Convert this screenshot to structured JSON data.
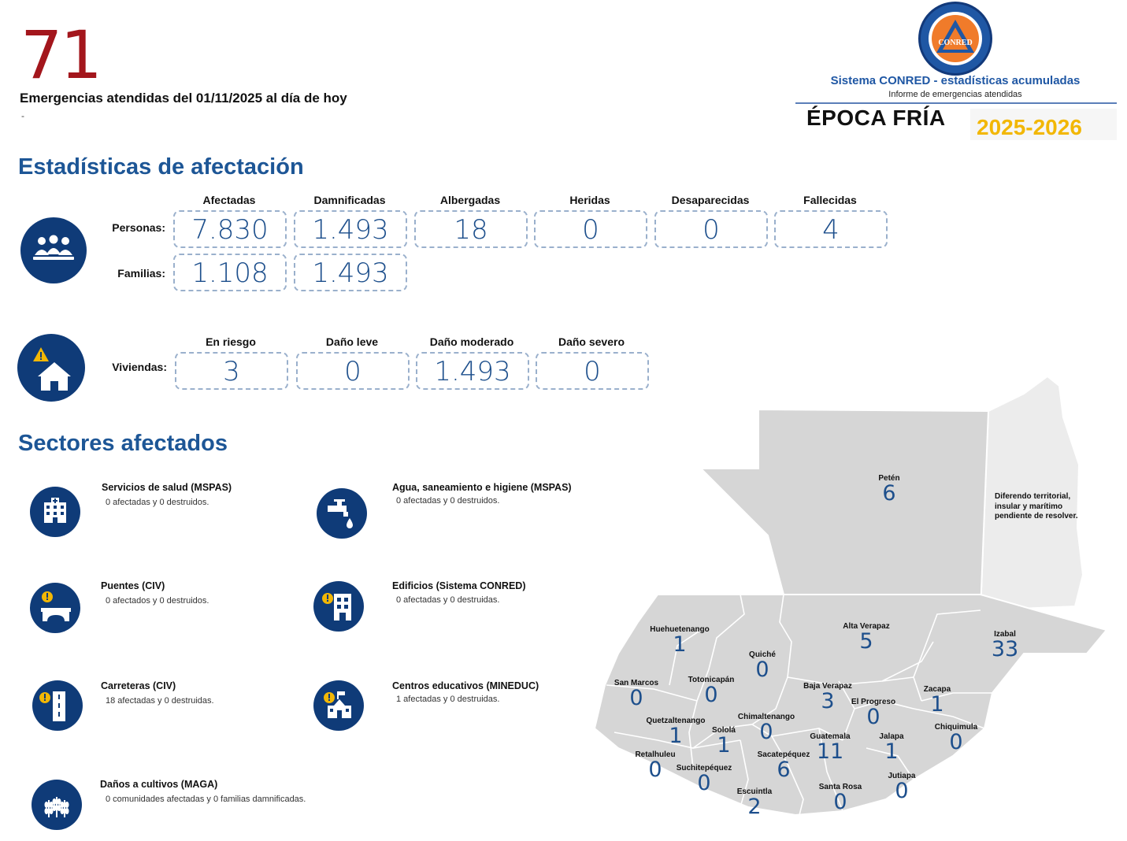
{
  "header": {
    "total_emergencies": "71",
    "headline": "Emergencias atendidas del 01/11/2025 al día de hoy",
    "note": "-"
  },
  "logo": {
    "emblem_text": "CONRED",
    "system_title": "Sistema CONRED - estadísticas acumuladas",
    "subtitle": "Informe de emergencias atendidas",
    "season": "ÉPOCA FRÍA",
    "years": "2025-2026"
  },
  "stats": {
    "title": "Estadísticas de afectación",
    "people_icon": "people-group-icon",
    "house_icon": "house-warning-icon",
    "people_columns": [
      "Afectadas",
      "Damnificadas",
      "Albergadas",
      "Heridas",
      "Desaparecidas",
      "Fallecidas"
    ],
    "personas_label": "Personas:",
    "personas_values": [
      "7.830",
      "1.493",
      "18",
      "0",
      "0",
      "4"
    ],
    "familias_label": "Familias:",
    "familias_values": [
      "1.108",
      "1.493"
    ],
    "housing_columns": [
      "En riesgo",
      "Daño leve",
      "Daño moderado",
      "Daño severo"
    ],
    "viviendas_label": "Viviendas:",
    "viviendas_values": [
      "3",
      "0",
      "1.493",
      "0"
    ]
  },
  "sectors": {
    "title": "Sectores afectados",
    "items": [
      {
        "title": "Servicios de salud (MSPAS)",
        "desc": "0 afectadas y 0 destruidos.",
        "icon": "hospital-icon"
      },
      {
        "title": "Agua, saneamiento e higiene (MSPAS)",
        "desc": "0 afectadas y 0 destruidos.",
        "icon": "water-tap-icon"
      },
      {
        "title": "Puentes (CIV)",
        "desc": "0 afectados y 0 destruidos.",
        "icon": "bridge-icon"
      },
      {
        "title": "Edificios (Sistema CONRED)",
        "desc": "0 afectadas y 0 destruidas.",
        "icon": "building-icon"
      },
      {
        "title": "Carreteras (CIV)",
        "desc": "18 afectadas y 0 destruidas.",
        "icon": "road-icon"
      },
      {
        "title": "Centros educativos (MINEDUC)",
        "desc": "1 afectadas y 0 destruidas.",
        "icon": "school-icon"
      },
      {
        "title": "Daños a cultivos (MAGA)",
        "desc": "0 comunidades afectadas y 0 familias damnificadas.",
        "icon": "crops-icon"
      }
    ]
  },
  "map": {
    "dispute_note": "Diferendo territorial, insular y marítimo pendiente de resolver.",
    "departments": [
      {
        "name": "Petén",
        "value": "6"
      },
      {
        "name": "Huehuetenango",
        "value": "1"
      },
      {
        "name": "Alta Verapaz",
        "value": "5"
      },
      {
        "name": "Izabal",
        "value": "33"
      },
      {
        "name": "Quiché",
        "value": "0"
      },
      {
        "name": "San Marcos",
        "value": "0"
      },
      {
        "name": "Totonicapán",
        "value": "0"
      },
      {
        "name": "Baja Verapaz",
        "value": "3"
      },
      {
        "name": "Zacapa",
        "value": "1"
      },
      {
        "name": "El Progreso",
        "value": "0"
      },
      {
        "name": "Quetzaltenango",
        "value": "1"
      },
      {
        "name": "Chimaltenango",
        "value": "0"
      },
      {
        "name": "Sololá",
        "value": "1"
      },
      {
        "name": "Chiquimula",
        "value": "0"
      },
      {
        "name": "Guatemala",
        "value": "11"
      },
      {
        "name": "Jalapa",
        "value": "1"
      },
      {
        "name": "Retalhuleu",
        "value": "0"
      },
      {
        "name": "Sacatepéquez",
        "value": "6"
      },
      {
        "name": "Suchitepéquez",
        "value": "0"
      },
      {
        "name": "Jutiapa",
        "value": "0"
      },
      {
        "name": "Santa Rosa",
        "value": "0"
      },
      {
        "name": "Escuintla",
        "value": "2"
      }
    ]
  },
  "colors": {
    "accent_red": "#a3161c",
    "primary_blue": "#1d5696",
    "icon_navy": "#0f3b78",
    "warning_yellow": "#f2b705",
    "map_gray": "#d6d6d6"
  }
}
